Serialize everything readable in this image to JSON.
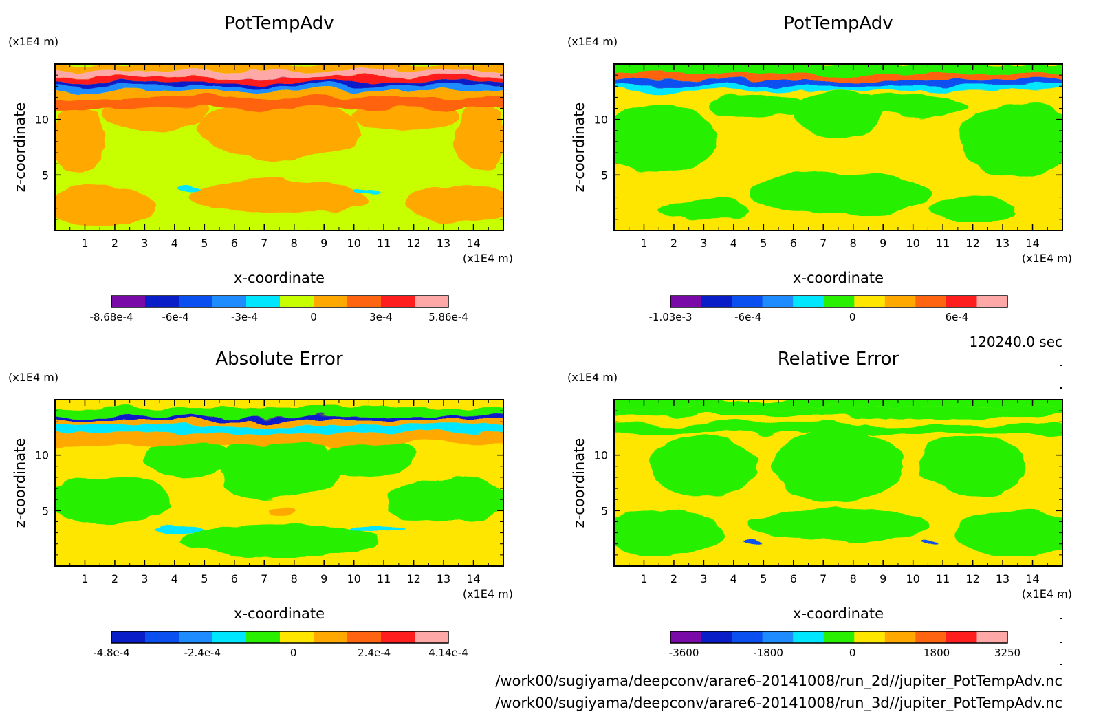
{
  "timestamp": "120240.0 sec",
  "footer_lines": [
    "/work00/sugiyama/deepconv/arare6-20141008/run_2d//jupiter_PotTempAdv.nc",
    "/work00/sugiyama/deepconv/arare6-20141008/run_3d//jupiter_PotTempAdv.nc"
  ],
  "chart_data": [
    {
      "type": "heatmap",
      "title": "PotTempAdv",
      "xlabel": "x-coordinate",
      "ylabel": "z-coordinate",
      "x_unit": "(x1E4 m)",
      "y_unit": "(x1E4 m)",
      "xlim": [
        0,
        15
      ],
      "ylim": [
        0,
        15
      ],
      "x_ticks": [
        1,
        2,
        3,
        4,
        5,
        6,
        7,
        8,
        9,
        10,
        11,
        12,
        13,
        14
      ],
      "y_ticks": [
        5,
        10
      ],
      "colors": [
        "#7a0aa8",
        "#0a1ec8",
        "#0a50f0",
        "#1e8cff",
        "#00e6ff",
        "#c8ff00",
        "#ffa800",
        "#ff6410",
        "#ff1e1e",
        "#ffa8a8"
      ],
      "colorbar_labels": [
        {
          "text": "-8.68e-4",
          "pos": 0
        },
        {
          "text": "-6e-4",
          "pos": 0.19
        },
        {
          "text": "-3e-4",
          "pos": 0.395
        },
        {
          "text": "0",
          "pos": 0.6
        },
        {
          "text": "3e-4",
          "pos": 0.8
        },
        {
          "text": "5.86e-4",
          "pos": 1
        }
      ]
    },
    {
      "type": "heatmap",
      "title": "PotTempAdv",
      "xlabel": "x-coordinate",
      "ylabel": "z-coordinate",
      "x_unit": "(x1E4 m)",
      "y_unit": "(x1E4 m)",
      "xlim": [
        0,
        15
      ],
      "ylim": [
        0,
        15
      ],
      "x_ticks": [
        1,
        2,
        3,
        4,
        5,
        6,
        7,
        8,
        9,
        10,
        11,
        12,
        13,
        14
      ],
      "y_ticks": [
        5,
        10
      ],
      "colors": [
        "#7a0aa8",
        "#0a1ec8",
        "#0a50f0",
        "#1e8cff",
        "#00e6ff",
        "#28f000",
        "#ffe600",
        "#ffa800",
        "#ff6410",
        "#ff1e1e",
        "#ffa8a8"
      ],
      "colorbar_labels": [
        {
          "text": "-1.03e-3",
          "pos": 0
        },
        {
          "text": "-6e-4",
          "pos": 0.23
        },
        {
          "text": "0",
          "pos": 0.54
        },
        {
          "text": "6e-4",
          "pos": 0.85
        }
      ]
    },
    {
      "type": "heatmap",
      "title": "Absolute Error",
      "xlabel": "x-coordinate",
      "ylabel": "z-coordinate",
      "x_unit": "(x1E4 m)",
      "y_unit": "(x1E4 m)",
      "xlim": [
        0,
        15
      ],
      "ylim": [
        0,
        15
      ],
      "x_ticks": [
        1,
        2,
        3,
        4,
        5,
        6,
        7,
        8,
        9,
        10,
        11,
        12,
        13,
        14
      ],
      "y_ticks": [
        5,
        10
      ],
      "colors": [
        "#0a1ec8",
        "#0a50f0",
        "#1e8cff",
        "#00e6ff",
        "#28f000",
        "#ffe600",
        "#ffa800",
        "#ff6410",
        "#ff1e1e",
        "#ffa8a8"
      ],
      "colorbar_labels": [
        {
          "text": "-4.8e-4",
          "pos": 0
        },
        {
          "text": "-2.4e-4",
          "pos": 0.27
        },
        {
          "text": "0",
          "pos": 0.54
        },
        {
          "text": "2.4e-4",
          "pos": 0.78
        },
        {
          "text": "4.14e-4",
          "pos": 1
        }
      ]
    },
    {
      "type": "heatmap",
      "title": "Relative Error",
      "xlabel": "x-coordinate",
      "ylabel": "z-coordinate",
      "x_unit": "(x1E4 m)",
      "y_unit": "(x1E4 m)",
      "xlim": [
        0,
        15
      ],
      "ylim": [
        0,
        15
      ],
      "x_ticks": [
        1,
        2,
        3,
        4,
        5,
        6,
        7,
        8,
        9,
        10,
        11,
        12,
        13,
        14
      ],
      "y_ticks": [
        5,
        10
      ],
      "colors": [
        "#7a0aa8",
        "#0a1ec8",
        "#0a50f0",
        "#1e8cff",
        "#00e6ff",
        "#28f000",
        "#ffe600",
        "#ffa800",
        "#ff6410",
        "#ff1e1e",
        "#ffa8a8"
      ],
      "colorbar_labels": [
        {
          "text": "-3600",
          "pos": 0.04
        },
        {
          "text": "-1800",
          "pos": 0.29
        },
        {
          "text": "0",
          "pos": 0.54
        },
        {
          "text": "1800",
          "pos": 0.79
        },
        {
          "text": "3250",
          "pos": 1
        }
      ]
    }
  ]
}
